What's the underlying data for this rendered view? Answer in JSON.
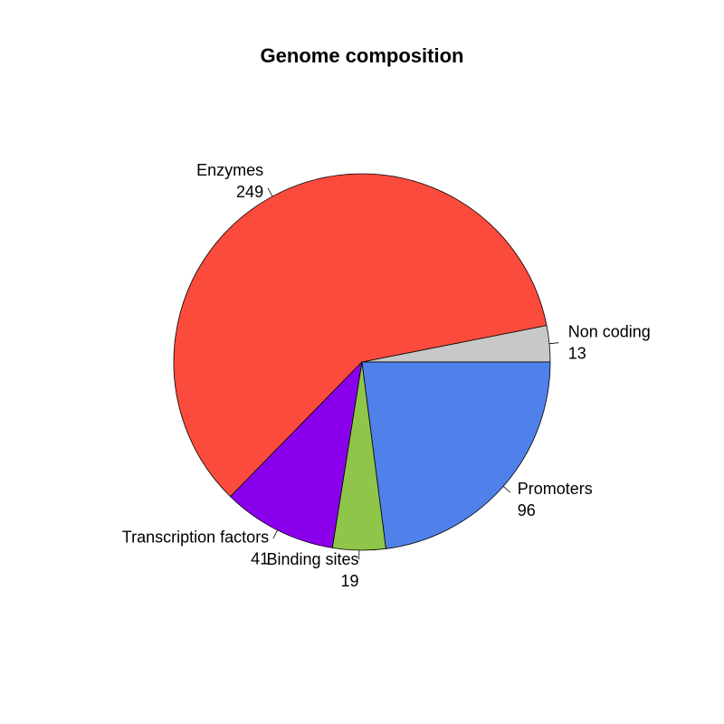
{
  "chart_data": {
    "type": "pie",
    "title": "Genome composition",
    "start_angle_deg": 0,
    "direction": "counterclockwise",
    "slices": [
      {
        "label": "Non coding",
        "value": 13,
        "value_label": "13",
        "color": "#c8c8c8"
      },
      {
        "label": "Enzymes",
        "value": 249,
        "value_label": "249",
        "color": "#fb4b3c"
      },
      {
        "label": "Transcription factors",
        "value": 41,
        "value_label": "41",
        "color": "#8b00ec"
      },
      {
        "label": "Binding sites",
        "value": 19,
        "value_label": "19",
        "color": "#8fc649"
      },
      {
        "label": "Promoters",
        "value": 96,
        "value_label": "96",
        "color": "#5080ea"
      }
    ]
  }
}
